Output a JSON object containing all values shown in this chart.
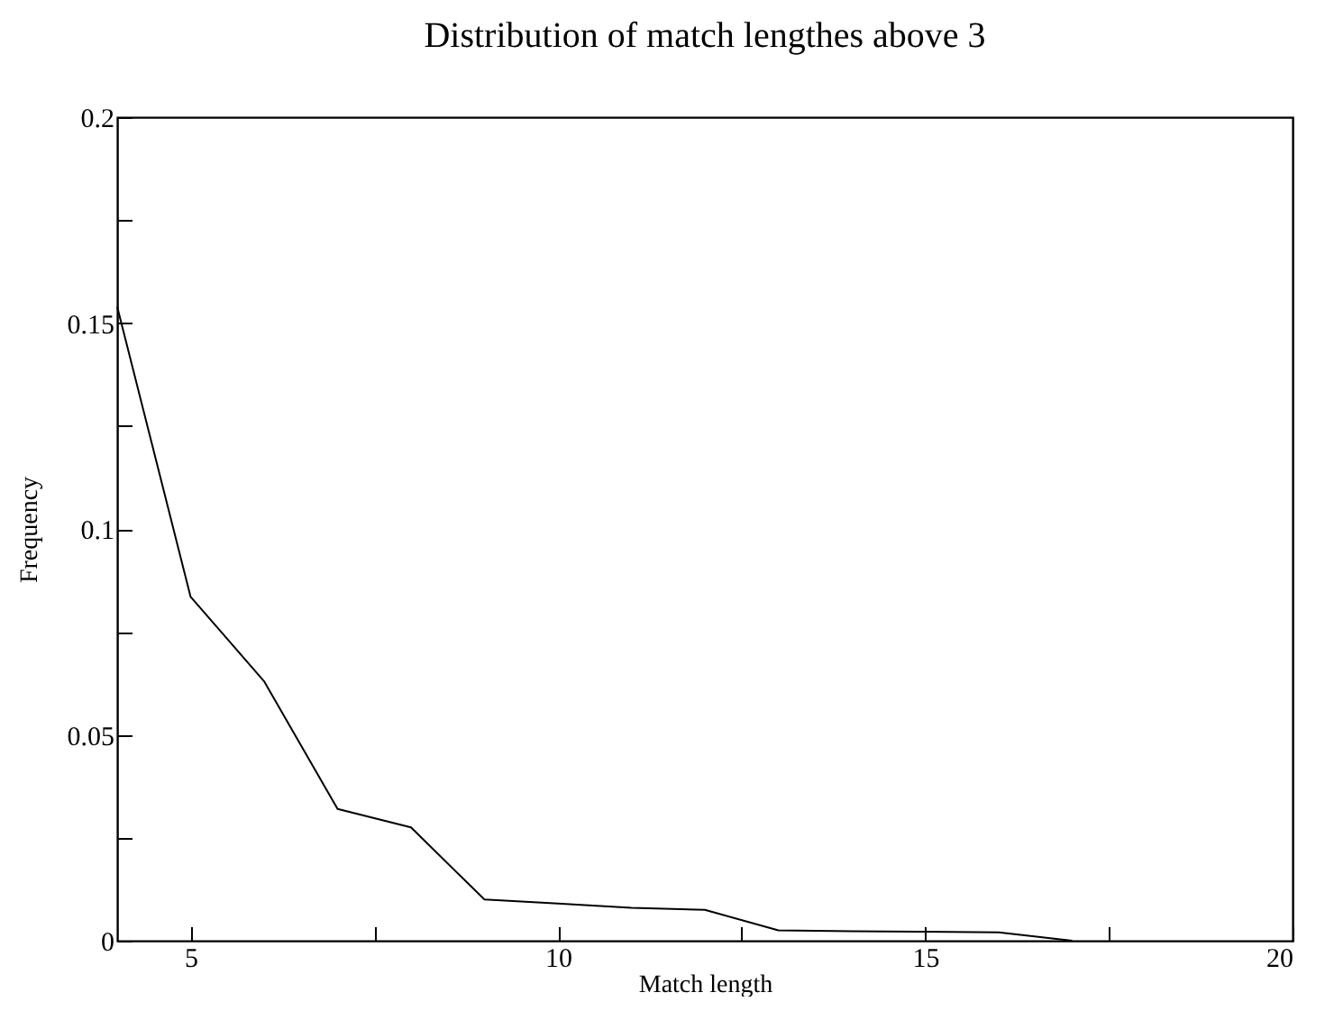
{
  "chart_data": {
    "type": "line",
    "title": "Distribution of match lengthes above 3",
    "xlabel": "Match length",
    "ylabel": "Frequency",
    "x": [
      4,
      5,
      6,
      7,
      8,
      9,
      10,
      11,
      12,
      13,
      14,
      15,
      16,
      17
    ],
    "series": [
      {
        "color": "#000000",
        "values": [
          0.154,
          0.0835,
          0.063,
          0.032,
          0.0275,
          0.01,
          0.009,
          0.008,
          0.0075,
          0.0025,
          0.0023,
          0.0022,
          0.002,
          0
        ]
      }
    ],
    "xlim": [
      4,
      20
    ],
    "xticks": [
      5,
      {
        "value": 7.5,
        "label": null
      },
      10,
      {
        "value": 12.5,
        "label": null
      },
      15,
      {
        "value": 17.5,
        "label": null
      },
      20
    ],
    "ylim": [
      0,
      0.2
    ],
    "yticks": [
      0,
      {
        "value": 0.025,
        "label": null
      },
      0.05,
      {
        "value": 0.075,
        "label": null
      },
      0.1,
      {
        "value": 0.125,
        "label": null
      },
      0.15,
      {
        "value": 0.175,
        "label": null
      },
      0.2
    ],
    "grid": false,
    "marker": "none",
    "line_style": "solid"
  }
}
